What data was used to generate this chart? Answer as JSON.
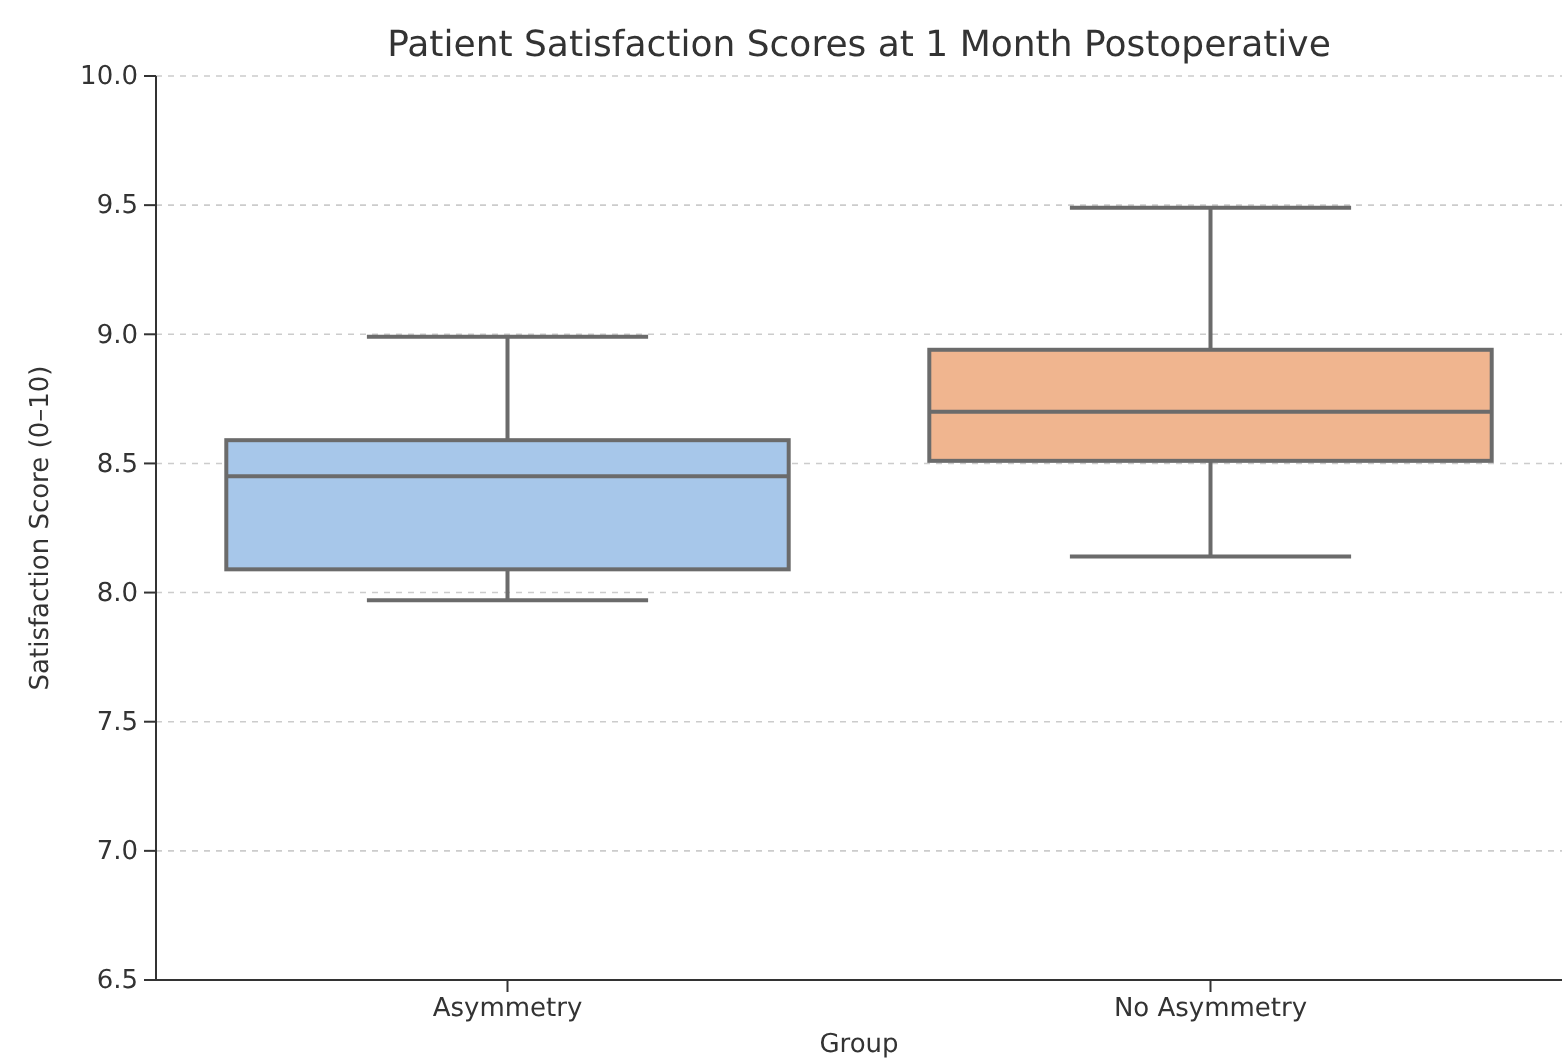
{
  "chart_data": {
    "type": "box",
    "title": "Patient Satisfaction Scores at 1 Month Postoperative",
    "xlabel": "Group",
    "ylabel": "Satisfaction Score (0–10)",
    "categories": [
      "Asymmetry",
      "No Asymmetry"
    ],
    "colors": [
      "#a7c7ea",
      "#f0b58f"
    ],
    "boxes": [
      {
        "low": 7.97,
        "q1": 8.09,
        "median": 8.45,
        "q3": 8.59,
        "high": 8.99
      },
      {
        "low": 8.14,
        "q1": 8.51,
        "median": 8.7,
        "q3": 8.94,
        "high": 9.49
      }
    ],
    "ylim": [
      6.5,
      10
    ],
    "yticks": [
      {
        "value": 6.5,
        "label": "6.5"
      },
      {
        "value": 7,
        "label": "7.0"
      },
      {
        "value": 7.5,
        "label": "7.5"
      },
      {
        "value": 8,
        "label": "8.0"
      },
      {
        "value": 8.5,
        "label": "8.5"
      },
      {
        "value": 9,
        "label": "9.0"
      },
      {
        "value": 9.5,
        "label": "9.5"
      },
      {
        "value": 10,
        "label": "10.0"
      }
    ],
    "grid": "y"
  }
}
